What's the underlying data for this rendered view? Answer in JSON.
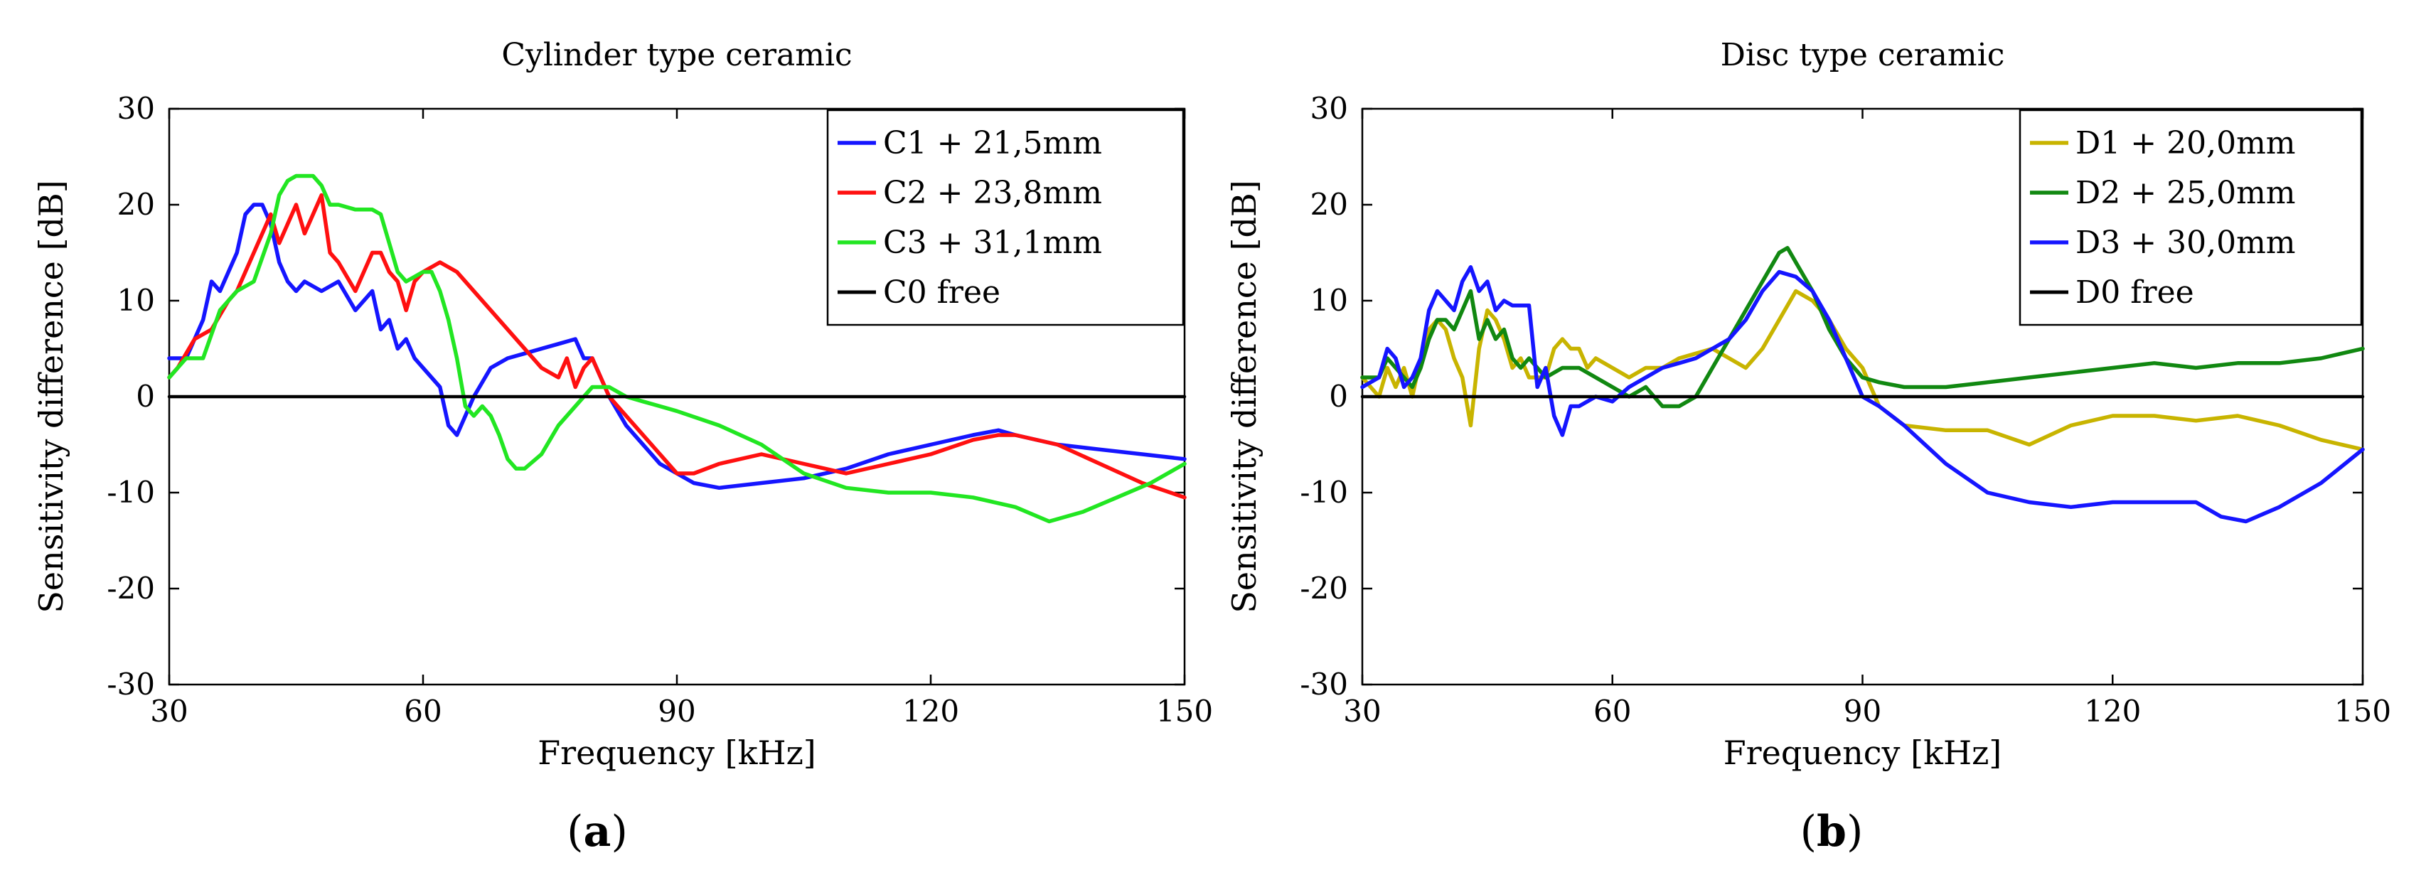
{
  "chart_data": [
    {
      "type": "line",
      "panel_label": "a",
      "title": "Cylinder type ceramic",
      "xlabel": "Frequency [kHz]",
      "ylabel": "Sensitivity difference [dB]",
      "xlim": [
        30,
        150
      ],
      "ylim": [
        -30,
        30
      ],
      "xticks": [
        "30",
        "60",
        "90",
        "120",
        "150"
      ],
      "yticks": [
        "30",
        "20",
        "10",
        "0",
        "-10",
        "-20",
        "-30"
      ],
      "grid": false,
      "legend_position": "top-right",
      "series": [
        {
          "name": "C1 + 21,5mm",
          "color": "#1515ff",
          "x": [
            30,
            32,
            34,
            35,
            36,
            38,
            39,
            40,
            41,
            42,
            43,
            44,
            45,
            46,
            48,
            50,
            52,
            54,
            55,
            56,
            57,
            58,
            59,
            60,
            62,
            63,
            64,
            66,
            68,
            70,
            72,
            74,
            76,
            78,
            79,
            80,
            82,
            84,
            86,
            88,
            90,
            92,
            95,
            100,
            105,
            110,
            115,
            120,
            125,
            128,
            130,
            135,
            140,
            145,
            150
          ],
          "y": [
            4,
            4,
            8,
            12,
            11,
            15,
            19,
            20,
            20,
            18,
            14,
            12,
            11,
            12,
            11,
            12,
            9,
            11,
            7,
            8,
            5,
            6,
            4,
            3,
            1,
            -3,
            -4,
            0,
            3,
            4,
            4.5,
            5,
            5.5,
            6,
            4,
            4,
            0,
            -3,
            -5,
            -7,
            -8,
            -9,
            -9.5,
            -9,
            -8.5,
            -7.5,
            -6,
            -5,
            -4,
            -3.5,
            -4,
            -5,
            -5.5,
            -6,
            -6.5
          ]
        },
        {
          "name": "C2 + 23,8mm",
          "color": "#ff1010",
          "x": [
            30,
            31,
            33,
            35,
            37,
            38,
            39,
            40,
            41,
            42,
            43,
            44,
            45,
            46,
            47,
            48,
            49,
            50,
            52,
            54,
            55,
            56,
            57,
            58,
            59,
            60,
            62,
            64,
            66,
            68,
            70,
            72,
            74,
            76,
            77,
            78,
            79,
            80,
            82,
            85,
            88,
            90,
            92,
            95,
            100,
            105,
            110,
            115,
            120,
            125,
            128,
            130,
            135,
            140,
            145,
            150
          ],
          "y": [
            2,
            3,
            6,
            7,
            10,
            11,
            13,
            15,
            17,
            19,
            16,
            18,
            20,
            17,
            19,
            21,
            15,
            14,
            11,
            15,
            15,
            13,
            12,
            9,
            12,
            13,
            14,
            13,
            11,
            9,
            7,
            5,
            3,
            2,
            4,
            1,
            3,
            4,
            0,
            -3,
            -6,
            -8,
            -8,
            -7,
            -6,
            -7,
            -8,
            -7,
            -6,
            -4.5,
            -4,
            -4,
            -5,
            -7,
            -9,
            -10.5
          ]
        },
        {
          "name": "C3 + 31,1mm",
          "color": "#22e622",
          "x": [
            30,
            32,
            34,
            36,
            38,
            40,
            42,
            43,
            44,
            45,
            46,
            47,
            48,
            49,
            50,
            52,
            54,
            55,
            56,
            57,
            58,
            59,
            60,
            61,
            62,
            63,
            64,
            65,
            66,
            67,
            68,
            69,
            70,
            71,
            72,
            74,
            76,
            78,
            80,
            82,
            84,
            86,
            88,
            90,
            95,
            100,
            105,
            110,
            115,
            120,
            125,
            130,
            134,
            138,
            142,
            146,
            150
          ],
          "y": [
            2,
            4,
            4,
            9,
            11,
            12,
            17,
            21,
            22.5,
            23,
            23,
            23,
            22,
            20,
            20,
            19.5,
            19.5,
            19,
            16,
            13,
            12,
            12.5,
            13,
            13,
            11,
            8,
            4,
            -1,
            -2,
            -1,
            -2,
            -4,
            -6.5,
            -7.5,
            -7.5,
            -6,
            -3,
            -1,
            1,
            1,
            0,
            -0.5,
            -1,
            -1.5,
            -3,
            -5,
            -8,
            -9.5,
            -10,
            -10,
            -10.5,
            -11.5,
            -13,
            -12,
            -10.5,
            -9,
            -7
          ]
        },
        {
          "name": "C0 free",
          "color": "#000000",
          "x": [
            30,
            150
          ],
          "y": [
            0,
            0
          ]
        }
      ]
    },
    {
      "type": "line",
      "panel_label": "b",
      "title": "Disc type ceramic",
      "xlabel": "Frequency [kHz]",
      "ylabel": "Sensitivity difference [dB]",
      "xlim": [
        30,
        150
      ],
      "ylim": [
        -30,
        30
      ],
      "xticks": [
        "30",
        "60",
        "90",
        "120",
        "150"
      ],
      "yticks": [
        "30",
        "20",
        "10",
        "0",
        "-10",
        "-20",
        "-30"
      ],
      "grid": false,
      "legend_position": "top-right",
      "series": [
        {
          "name": "D1 + 20,0mm",
          "color": "#c8b400",
          "x": [
            30,
            32,
            33,
            34,
            35,
            36,
            37,
            38,
            39,
            40,
            41,
            42,
            43,
            44,
            45,
            46,
            47,
            48,
            49,
            50,
            52,
            53,
            54,
            55,
            56,
            57,
            58,
            60,
            62,
            64,
            66,
            68,
            70,
            72,
            74,
            76,
            78,
            80,
            82,
            84,
            86,
            88,
            90,
            92,
            95,
            100,
            105,
            110,
            115,
            120,
            125,
            130,
            135,
            140,
            145,
            150
          ],
          "y": [
            2,
            0,
            3,
            1,
            3,
            0,
            4,
            7,
            8,
            7,
            4,
            2,
            -3,
            5,
            9,
            8,
            6,
            3,
            4,
            2,
            2,
            5,
            6,
            5,
            5,
            3,
            4,
            3,
            2,
            3,
            3,
            4,
            4.5,
            5,
            4,
            3,
            5,
            8,
            11,
            10,
            8,
            5,
            3,
            -1,
            -3,
            -3.5,
            -3.5,
            -5,
            -3,
            -2,
            -2,
            -2.5,
            -2,
            -3,
            -4.5,
            -5.5
          ]
        },
        {
          "name": "D2 + 25,0mm",
          "color": "#118811",
          "x": [
            30,
            32,
            33,
            34,
            35,
            36,
            37,
            38,
            39,
            40,
            41,
            42,
            43,
            44,
            45,
            46,
            47,
            48,
            49,
            50,
            52,
            54,
            56,
            58,
            60,
            62,
            64,
            66,
            68,
            70,
            72,
            74,
            76,
            78,
            80,
            81,
            82,
            84,
            86,
            88,
            90,
            92,
            95,
            100,
            105,
            110,
            115,
            120,
            125,
            130,
            135,
            140,
            145,
            150
          ],
          "y": [
            2,
            2,
            4,
            3,
            2,
            1,
            3,
            6,
            8,
            8,
            7,
            9,
            11,
            6,
            8,
            6,
            7,
            4,
            3,
            4,
            2,
            3,
            3,
            2,
            1,
            0,
            1,
            -1,
            -1,
            0,
            3,
            6,
            9,
            12,
            15,
            15.5,
            14,
            11,
            7,
            4,
            2,
            1.5,
            1,
            1,
            1.5,
            2,
            2.5,
            3,
            3.5,
            3,
            3.5,
            3.5,
            4,
            5
          ]
        },
        {
          "name": "D3 + 30,0mm",
          "color": "#1515ff",
          "x": [
            30,
            32,
            33,
            34,
            35,
            36,
            37,
            38,
            39,
            40,
            41,
            42,
            43,
            44,
            45,
            46,
            47,
            48,
            49,
            50,
            51,
            52,
            53,
            54,
            55,
            56,
            58,
            60,
            62,
            64,
            66,
            68,
            70,
            72,
            74,
            76,
            78,
            80,
            82,
            84,
            86,
            88,
            90,
            92,
            95,
            100,
            105,
            110,
            115,
            120,
            125,
            130,
            133,
            136,
            140,
            145,
            150
          ],
          "y": [
            1,
            2,
            5,
            4,
            1,
            2,
            4,
            9,
            11,
            10,
            9,
            12,
            13.5,
            11,
            12,
            9,
            10,
            9.5,
            9.5,
            9.5,
            1,
            3,
            -2,
            -4,
            -1,
            -1,
            0,
            -0.5,
            1,
            2,
            3,
            3.5,
            4,
            5,
            6,
            8,
            11,
            13,
            12.5,
            11,
            8,
            4,
            0,
            -1,
            -3,
            -7,
            -10,
            -11,
            -11.5,
            -11,
            -11,
            -11,
            -12.5,
            -13,
            -11.5,
            -9,
            -5.5
          ]
        },
        {
          "name": "D0 free",
          "color": "#000000",
          "x": [
            30,
            150
          ],
          "y": [
            0,
            0
          ]
        }
      ]
    }
  ]
}
